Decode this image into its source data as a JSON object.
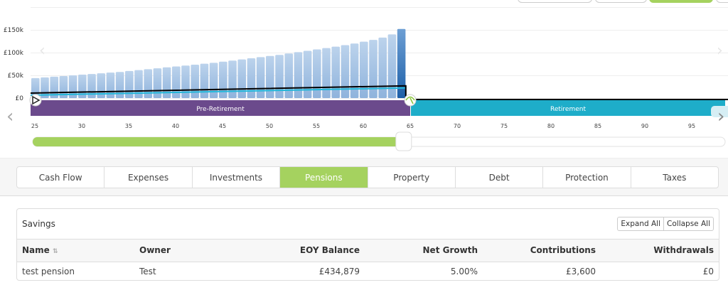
{
  "chart_data": {
    "type": "bar",
    "y_ticks": [
      "£0",
      "£50k",
      "£100k",
      "£150k"
    ],
    "ylim": [
      0,
      160000
    ],
    "x_ticks": [
      "25",
      "30",
      "35",
      "40",
      "45",
      "50",
      "55",
      "60",
      "65",
      "70",
      "75",
      "80",
      "85",
      "90",
      "95"
    ],
    "xlim": [
      25,
      99
    ],
    "ages": [
      25,
      26,
      27,
      28,
      29,
      30,
      31,
      32,
      33,
      34,
      35,
      36,
      37,
      38,
      39,
      40,
      41,
      42,
      43,
      44,
      45,
      46,
      47,
      48,
      49,
      50,
      51,
      52,
      53,
      54,
      55,
      56,
      57,
      58,
      59,
      60,
      61,
      62,
      63,
      64
    ],
    "values": [
      44000,
      45500,
      47000,
      48500,
      50000,
      51500,
      53000,
      54500,
      56000,
      57500,
      59500,
      61500,
      63500,
      65500,
      67500,
      69500,
      71500,
      73500,
      75500,
      77500,
      80000,
      82500,
      85000,
      87500,
      90000,
      92500,
      95000,
      98000,
      101000,
      104000,
      107000,
      110000,
      113000,
      116500,
      120000,
      124000,
      128000,
      133000,
      140000,
      152000
    ],
    "contribution_line": {
      "start_age": 25,
      "end_age": 64,
      "start_value": 11000,
      "end_value": 27000
    },
    "colors": {
      "bar": "#a9c6e6",
      "bar_highlight": "#2e6fb4",
      "line": "#000000",
      "line2": "#22b6d8"
    },
    "grid": true
  },
  "phases": [
    {
      "label": "Pre-Retirement",
      "color": "#6b4a8c",
      "from": 25,
      "to": 65
    },
    {
      "label": "Retirement",
      "color": "#1eadc9",
      "from": 65,
      "to": 99
    }
  ],
  "slider": {
    "value_age": 64,
    "fill_color": "#a5d25f"
  },
  "tabs": [
    "Cash Flow",
    "Expenses",
    "Investments",
    "Pensions",
    "Property",
    "Debt",
    "Protection",
    "Taxes"
  ],
  "active_tab": "Pensions",
  "savings": {
    "title": "Savings",
    "expand_all": "Expand All",
    "collapse_all": "Collapse All",
    "columns": [
      "Name",
      "Owner",
      "EOY Balance",
      "Net Growth",
      "Contributions",
      "Withdrawals"
    ],
    "sort_icon": "⇅",
    "rows": [
      {
        "name": "test pension",
        "owner": "Test",
        "eoy_balance": "£434,879",
        "net_growth": "5.00%",
        "contributions": "£3,600",
        "withdrawals": "£0"
      }
    ]
  }
}
